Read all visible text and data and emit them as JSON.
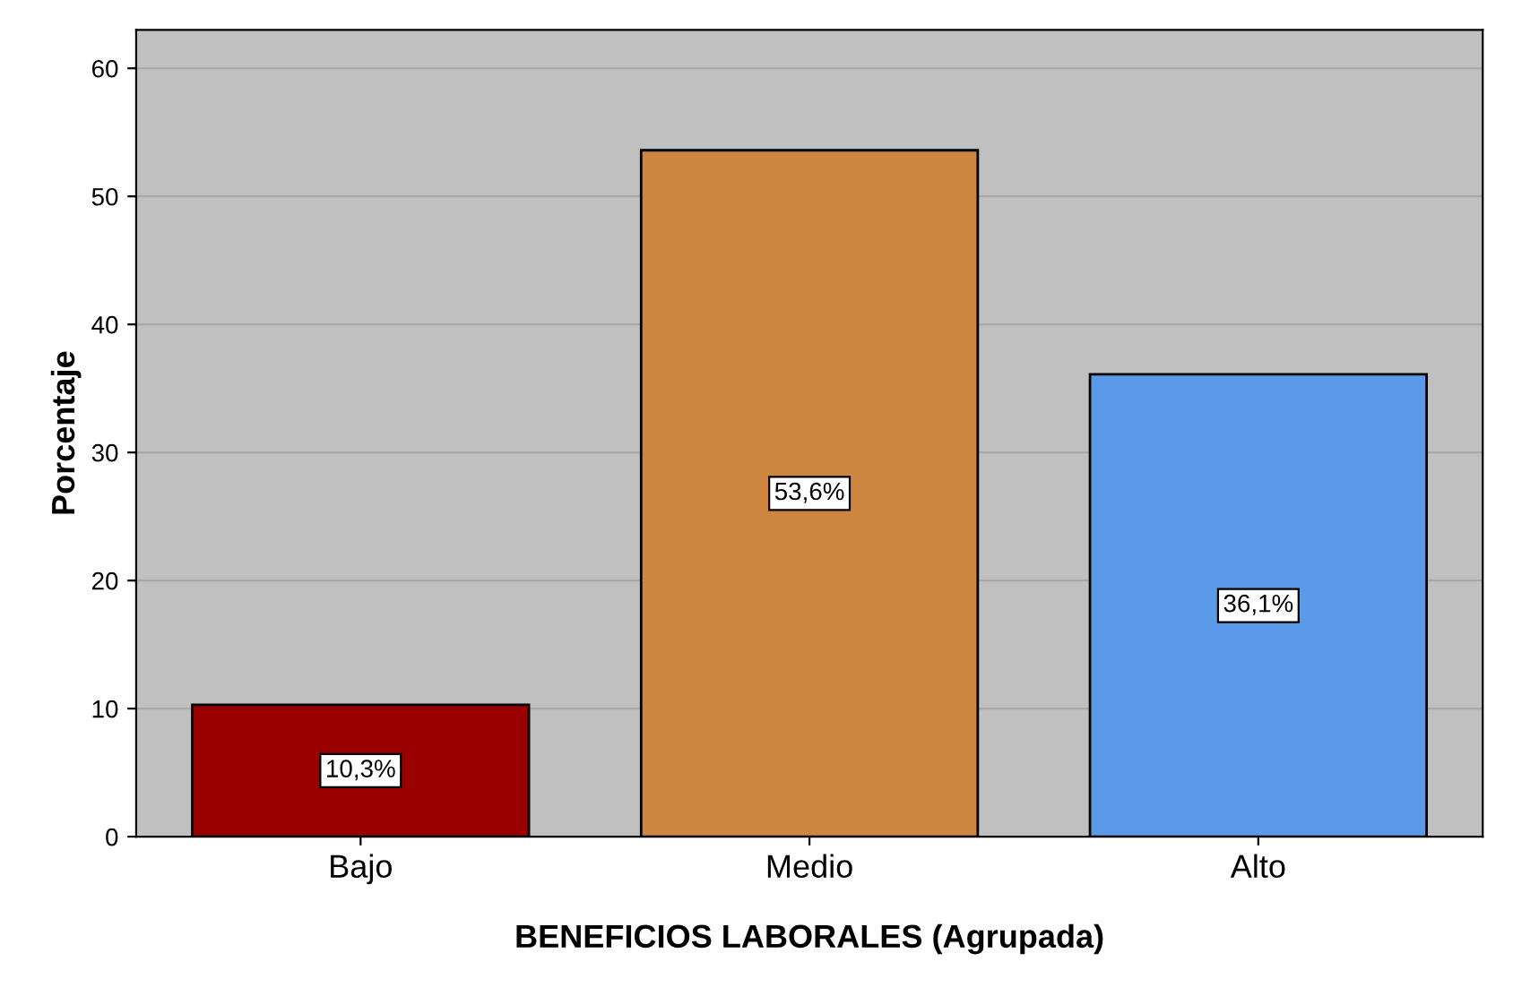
{
  "chart_data": {
    "type": "bar",
    "xlabel": "BENEFICIOS LABORALES (Agrupada)",
    "ylabel": "Porcentaje",
    "categories": [
      "Bajo",
      "Medio",
      "Alto"
    ],
    "values": [
      10.3,
      53.6,
      36.1
    ],
    "colors": [
      "#990000",
      "#cd853f",
      "#5a9ae6"
    ],
    "value_labels": [
      "10,3%",
      "53,6%",
      "36,1%"
    ],
    "ylim": [
      0,
      63
    ],
    "yticks": [
      0,
      10,
      20,
      30,
      40,
      50,
      60
    ],
    "grid": "y"
  }
}
